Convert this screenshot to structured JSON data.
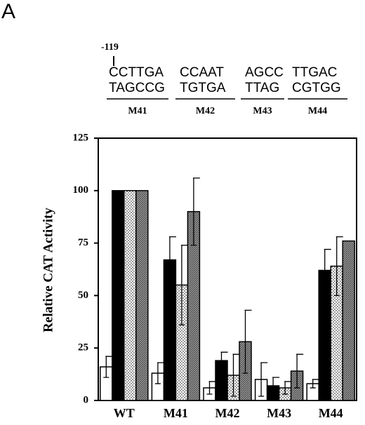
{
  "chart_data": {
    "type": "bar",
    "panel_label": "A",
    "position_label": "-119",
    "segments": [
      {
        "top": "CCTTGA",
        "bottom": "TAGCCG",
        "label": "M41"
      },
      {
        "top": "CCAAT",
        "bottom": "TGTGA",
        "label": "M42"
      },
      {
        "top": "AGCC",
        "bottom": "TTAG",
        "label": "M43"
      },
      {
        "top": "TTGAC",
        "bottom": "CGTGG",
        "label": "M44"
      }
    ],
    "y_label": "Relative  CAT  Activity",
    "categories": [
      "WT",
      "M41",
      "M42",
      "M43",
      "M44"
    ],
    "series": [
      {
        "color": "#ffffff",
        "pattern": "solid",
        "values": [
          16,
          13,
          6,
          10,
          8
        ],
        "errors": [
          5,
          5,
          3,
          8,
          2
        ]
      },
      {
        "color": "#000000",
        "pattern": "solid",
        "values": [
          100,
          67,
          19,
          7,
          62
        ],
        "errors": [
          null,
          11,
          4,
          4,
          10
        ]
      },
      {
        "color": "#ffffff",
        "pattern": "dots",
        "values": [
          100,
          55,
          12,
          6,
          64
        ],
        "errors": [
          null,
          19,
          10,
          3,
          14
        ]
      },
      {
        "color": "#9a9a9a",
        "pattern": "hatch",
        "values": [
          100,
          90,
          28,
          14,
          76
        ],
        "errors": [
          null,
          16,
          15,
          8,
          null
        ]
      }
    ],
    "ylim": [
      0,
      125
    ],
    "yticks": [
      0,
      25,
      50,
      75,
      100,
      125
    ]
  }
}
